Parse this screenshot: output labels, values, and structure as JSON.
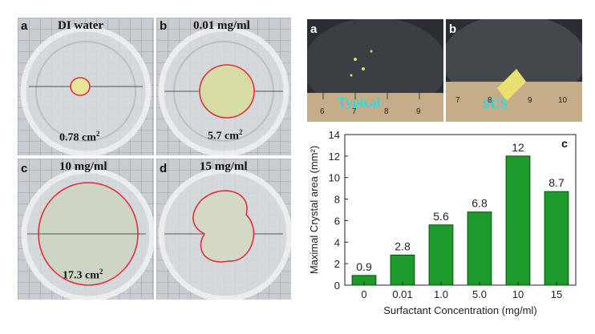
{
  "photos": [
    {
      "label": "a",
      "title": "DI water",
      "area": "0.78 cm",
      "area_sup": "2"
    },
    {
      "label": "b",
      "title": "0.01 mg/ml",
      "area": "5.7 cm",
      "area_sup": "2"
    },
    {
      "label": "c",
      "title": "10 mg/ml",
      "area": "17.3 cm",
      "area_sup": "2"
    },
    {
      "label": "d",
      "title": "15 mg/ml",
      "area": "",
      "area_sup": ""
    }
  ],
  "ruler_tick_label": "cm",
  "crystal_photos": [
    {
      "label": "a",
      "caption": "Typical",
      "scale": [
        "6",
        "7",
        "8",
        "9"
      ]
    },
    {
      "label": "b",
      "caption": "SCS",
      "scale": [
        "7",
        "8",
        "9",
        "10"
      ]
    }
  ],
  "colors": {
    "bar_fill": "#1e9a2c",
    "bar_edge": "#0a4d12",
    "outline": "#e0303a",
    "caption": "#2ed6e6"
  },
  "chart_data": {
    "type": "bar",
    "panel_label": "c",
    "categories": [
      "0",
      "0.01",
      "1.0",
      "5.0",
      "10",
      "15"
    ],
    "values": [
      0.9,
      2.8,
      5.6,
      6.8,
      12,
      8.7
    ],
    "data_labels": [
      "0.9",
      "2.8",
      "5.6",
      "6.8",
      "12",
      "8.7"
    ],
    "title": "",
    "xlabel": "Surfactant Concentration (mg/ml)",
    "ylabel": "Maximal Crystal area (mm²)",
    "ylim": [
      0,
      14
    ],
    "yticks": [
      "0",
      "2",
      "4",
      "6",
      "8",
      "10",
      "12",
      "14"
    ],
    "grid": false,
    "legend": "none"
  }
}
